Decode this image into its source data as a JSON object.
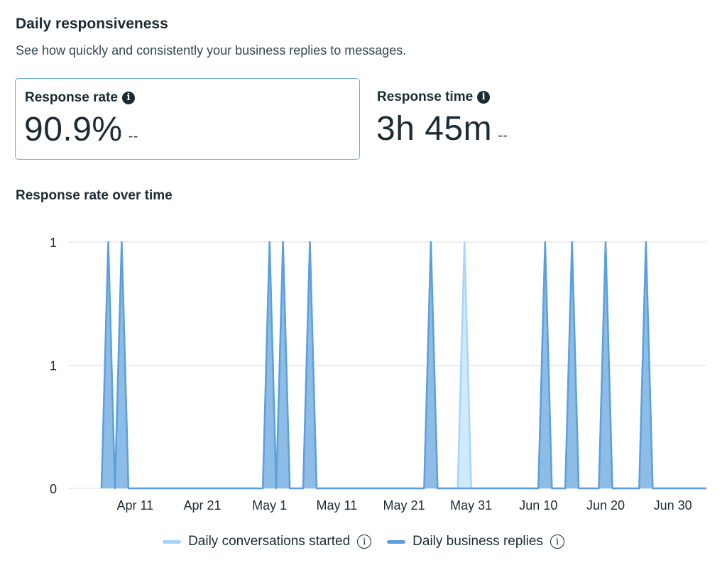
{
  "header": {
    "title": "Daily responsiveness",
    "subtitle": "See how quickly and consistently your business replies to messages."
  },
  "metrics": [
    {
      "label": "Response rate",
      "value": "90.9%",
      "change": "--",
      "info_icon": "info-icon",
      "selected": true
    },
    {
      "label": "Response time",
      "value": "3h 45m",
      "change": "--",
      "info_icon": "info-icon",
      "selected": false
    }
  ],
  "chart_data": {
    "type": "area",
    "title": "Response rate over time",
    "x_range": [
      "2024-04-06",
      "2024-07-05"
    ],
    "x_ticks": [
      {
        "date": "2024-04-11",
        "label": "Apr 11"
      },
      {
        "date": "2024-04-21",
        "label": "Apr 21"
      },
      {
        "date": "2024-05-01",
        "label": "May 1"
      },
      {
        "date": "2024-05-11",
        "label": "May 11"
      },
      {
        "date": "2024-05-21",
        "label": "May 21"
      },
      {
        "date": "2024-05-31",
        "label": "May 31"
      },
      {
        "date": "2024-06-10",
        "label": "Jun 10"
      },
      {
        "date": "2024-06-20",
        "label": "Jun 20"
      },
      {
        "date": "2024-06-30",
        "label": "Jun 30"
      }
    ],
    "ylim": [
      0,
      1
    ],
    "y_ticks": [
      {
        "value": 1,
        "label": "1"
      },
      {
        "value": 0.5,
        "label": "1"
      },
      {
        "value": 0,
        "label": "0"
      }
    ],
    "grid": true,
    "legend_position": "bottom",
    "note": "",
    "series": [
      {
        "name": "Daily conversations started",
        "color": "#a6d6fb",
        "fill": "#cfe9fd",
        "points": [
          [
            "2024-04-07",
            1
          ],
          [
            "2024-04-09",
            1
          ],
          [
            "2024-05-01",
            1
          ],
          [
            "2024-05-03",
            1
          ],
          [
            "2024-05-07",
            1
          ],
          [
            "2024-05-25",
            1
          ],
          [
            "2024-05-30",
            1
          ],
          [
            "2024-06-11",
            1
          ],
          [
            "2024-06-15",
            1
          ],
          [
            "2024-06-20",
            1
          ],
          [
            "2024-06-26",
            1
          ]
        ]
      },
      {
        "name": "Daily business replies",
        "color": "#5b9fdc",
        "fill": "#8dbde6",
        "points": [
          [
            "2024-04-07",
            1
          ],
          [
            "2024-04-09",
            1
          ],
          [
            "2024-05-01",
            1
          ],
          [
            "2024-05-03",
            1
          ],
          [
            "2024-05-07",
            1
          ],
          [
            "2024-05-25",
            1
          ],
          [
            "2024-06-11",
            1
          ],
          [
            "2024-06-15",
            1
          ],
          [
            "2024-06-20",
            1
          ],
          [
            "2024-06-26",
            1
          ]
        ]
      }
    ]
  }
}
